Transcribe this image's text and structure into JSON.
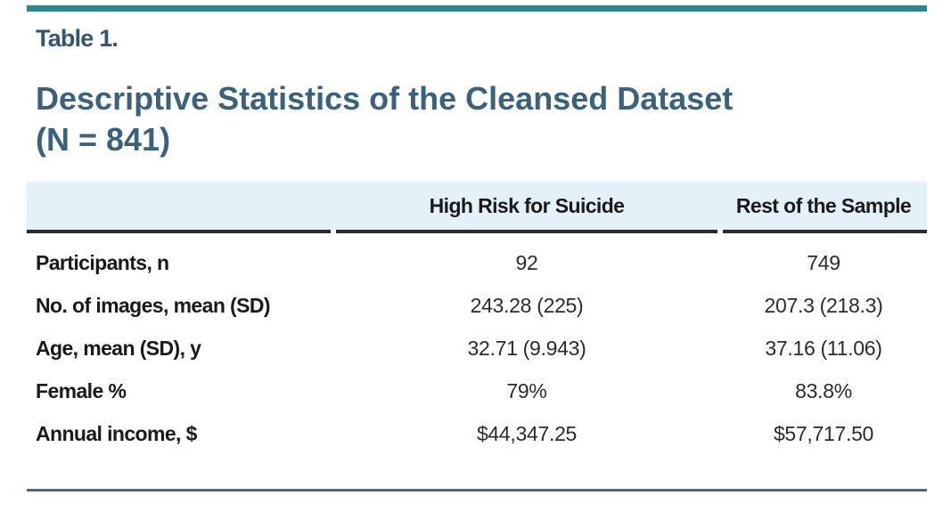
{
  "caption": "Table 1.",
  "title_line1": "Descriptive Statistics of the Cleansed Dataset",
  "title_line2": "(N = 841)",
  "table": {
    "columns": [
      "",
      "High Risk for Suicide",
      "Rest of the Sample"
    ],
    "rows": [
      {
        "label": "Participants, n",
        "high_risk": "92",
        "rest": "749"
      },
      {
        "label": "No. of images, mean (SD)",
        "high_risk": "243.28 (225)",
        "rest": "207.3 (218.3)"
      },
      {
        "label": "Age, mean (SD), y",
        "high_risk": "32.71 (9.943)",
        "rest": "37.16 (11.06)"
      },
      {
        "label": "Female %",
        "high_risk": "79%",
        "rest": "83.8%"
      },
      {
        "label": "Annual income, $",
        "high_risk": "$44,347.25",
        "rest": "$57,717.50"
      }
    ]
  },
  "colors": {
    "top_accent_teal": "#2E8495",
    "caption_blue": "#33566B",
    "title_blue": "#3A617E",
    "header_band_bg": "#E4F1F9",
    "header_rule_dark": "#2B2B2B",
    "bottom_rule_slate": "#4C6A82",
    "body_text": "#2B2B2B"
  }
}
